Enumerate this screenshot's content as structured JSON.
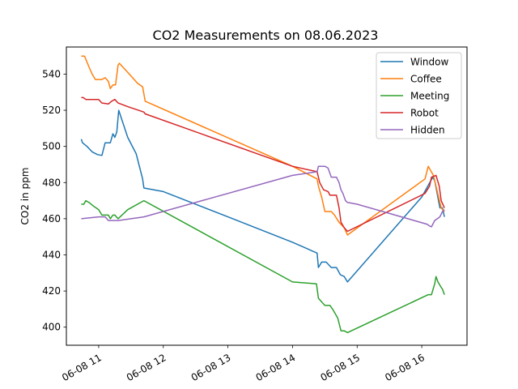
{
  "chart_data": {
    "type": "line",
    "title": "CO2 Measurements on 08.06.2023",
    "xlabel": "",
    "ylabel": "CO2 in ppm",
    "x_unit": "hour of day (06-08)",
    "xlim": [
      10.5,
      16.7
    ],
    "ylim": [
      390,
      555
    ],
    "x_ticks": [
      {
        "value": 11,
        "label": "06-08 11"
      },
      {
        "value": 12,
        "label": "06-08 12"
      },
      {
        "value": 13,
        "label": "06-08 13"
      },
      {
        "value": 14,
        "label": "06-08 14"
      },
      {
        "value": 15,
        "label": "06-08 15"
      },
      {
        "value": 16,
        "label": "06-08 16"
      }
    ],
    "y_ticks": [
      400,
      420,
      440,
      460,
      480,
      500,
      520,
      540
    ],
    "grid": false,
    "legend_position": "top-right",
    "series": [
      {
        "name": "Window",
        "color": "#1f77b4",
        "points": [
          [
            10.73,
            504
          ],
          [
            10.75,
            502
          ],
          [
            10.82,
            500
          ],
          [
            10.9,
            497
          ],
          [
            10.98,
            495.5
          ],
          [
            11.05,
            495
          ],
          [
            11.1,
            502
          ],
          [
            11.18,
            502
          ],
          [
            11.22,
            507
          ],
          [
            11.25,
            505
          ],
          [
            11.28,
            508
          ],
          [
            11.31,
            520
          ],
          [
            11.45,
            505
          ],
          [
            11.58,
            496
          ],
          [
            11.68,
            482
          ],
          [
            11.7,
            477
          ],
          [
            12.0,
            475
          ],
          [
            13.0,
            461
          ],
          [
            14.0,
            447
          ],
          [
            14.38,
            441
          ],
          [
            14.4,
            433
          ],
          [
            14.45,
            436
          ],
          [
            14.52,
            436
          ],
          [
            14.6,
            433
          ],
          [
            14.68,
            433
          ],
          [
            14.74,
            429
          ],
          [
            14.8,
            428
          ],
          [
            14.85,
            425
          ],
          [
            16.0,
            472
          ],
          [
            16.17,
            483
          ],
          [
            16.2,
            481
          ],
          [
            16.28,
            466
          ],
          [
            16.32,
            466
          ],
          [
            16.35,
            461
          ]
        ]
      },
      {
        "name": "Coffee",
        "color": "#ff7f0e",
        "points": [
          [
            10.73,
            550
          ],
          [
            10.78,
            550
          ],
          [
            10.85,
            544
          ],
          [
            10.9,
            540
          ],
          [
            10.95,
            537
          ],
          [
            11.05,
            537
          ],
          [
            11.1,
            538
          ],
          [
            11.15,
            536
          ],
          [
            11.18,
            532
          ],
          [
            11.22,
            534
          ],
          [
            11.26,
            534
          ],
          [
            11.3,
            545
          ],
          [
            11.32,
            546
          ],
          [
            11.45,
            541
          ],
          [
            11.6,
            535
          ],
          [
            11.68,
            533
          ],
          [
            11.72,
            525
          ],
          [
            14.0,
            489
          ],
          [
            14.38,
            482
          ],
          [
            14.4,
            478
          ],
          [
            14.45,
            472
          ],
          [
            14.5,
            464
          ],
          [
            14.6,
            464
          ],
          [
            14.65,
            462
          ],
          [
            14.72,
            458
          ],
          [
            14.8,
            455
          ],
          [
            14.85,
            451
          ],
          [
            16.05,
            482
          ],
          [
            16.1,
            489
          ],
          [
            16.18,
            484
          ],
          [
            16.22,
            478
          ],
          [
            16.3,
            466
          ],
          [
            16.35,
            464
          ]
        ]
      },
      {
        "name": "Meeting",
        "color": "#2ca02c",
        "points": [
          [
            10.73,
            468
          ],
          [
            10.77,
            468
          ],
          [
            10.8,
            470
          ],
          [
            10.85,
            469
          ],
          [
            10.92,
            467
          ],
          [
            11.0,
            465
          ],
          [
            11.05,
            462
          ],
          [
            11.15,
            462
          ],
          [
            11.18,
            460
          ],
          [
            11.22,
            462
          ],
          [
            11.25,
            462
          ],
          [
            11.3,
            460
          ],
          [
            11.45,
            465
          ],
          [
            11.7,
            470
          ],
          [
            14.0,
            425
          ],
          [
            14.37,
            424
          ],
          [
            14.4,
            416
          ],
          [
            14.45,
            414
          ],
          [
            14.5,
            412
          ],
          [
            14.58,
            412
          ],
          [
            14.62,
            410
          ],
          [
            14.7,
            405
          ],
          [
            14.75,
            398
          ],
          [
            14.8,
            398
          ],
          [
            14.85,
            397
          ],
          [
            16.1,
            418
          ],
          [
            16.15,
            418
          ],
          [
            16.2,
            424
          ],
          [
            16.22,
            428
          ],
          [
            16.25,
            425
          ],
          [
            16.3,
            422
          ],
          [
            16.32,
            421
          ],
          [
            16.35,
            418
          ]
        ]
      },
      {
        "name": "Robot",
        "color": "#d62728",
        "points": [
          [
            10.73,
            527
          ],
          [
            10.76,
            527
          ],
          [
            10.8,
            526
          ],
          [
            10.9,
            526
          ],
          [
            11.0,
            526
          ],
          [
            11.05,
            524
          ],
          [
            11.15,
            523.5
          ],
          [
            11.2,
            525
          ],
          [
            11.25,
            526
          ],
          [
            11.3,
            524
          ],
          [
            11.45,
            522
          ],
          [
            11.7,
            519
          ],
          [
            11.72,
            518
          ],
          [
            14.0,
            489
          ],
          [
            14.38,
            486
          ],
          [
            14.42,
            480
          ],
          [
            14.48,
            476
          ],
          [
            14.55,
            475
          ],
          [
            14.58,
            473
          ],
          [
            14.68,
            473
          ],
          [
            14.72,
            466
          ],
          [
            14.75,
            458
          ],
          [
            14.8,
            455
          ],
          [
            14.85,
            453
          ],
          [
            16.05,
            474
          ],
          [
            16.12,
            478
          ],
          [
            16.15,
            483
          ],
          [
            16.22,
            484
          ],
          [
            16.27,
            478
          ],
          [
            16.3,
            470
          ],
          [
            16.35,
            466
          ]
        ]
      },
      {
        "name": "Hidden",
        "color": "#9467bd",
        "points": [
          [
            10.73,
            460
          ],
          [
            11.0,
            461
          ],
          [
            11.1,
            461
          ],
          [
            11.15,
            459
          ],
          [
            11.3,
            459
          ],
          [
            11.7,
            461
          ],
          [
            14.0,
            484
          ],
          [
            14.38,
            486
          ],
          [
            14.4,
            489
          ],
          [
            14.5,
            489
          ],
          [
            14.55,
            488
          ],
          [
            14.6,
            483
          ],
          [
            14.68,
            483
          ],
          [
            14.72,
            480
          ],
          [
            14.75,
            476
          ],
          [
            14.78,
            474
          ],
          [
            14.82,
            470
          ],
          [
            14.85,
            469
          ],
          [
            15.0,
            468
          ],
          [
            16.08,
            457
          ],
          [
            16.12,
            456
          ],
          [
            16.15,
            455.5
          ],
          [
            16.2,
            459
          ],
          [
            16.28,
            461
          ],
          [
            16.32,
            464
          ],
          [
            16.35,
            465
          ]
        ]
      }
    ]
  }
}
